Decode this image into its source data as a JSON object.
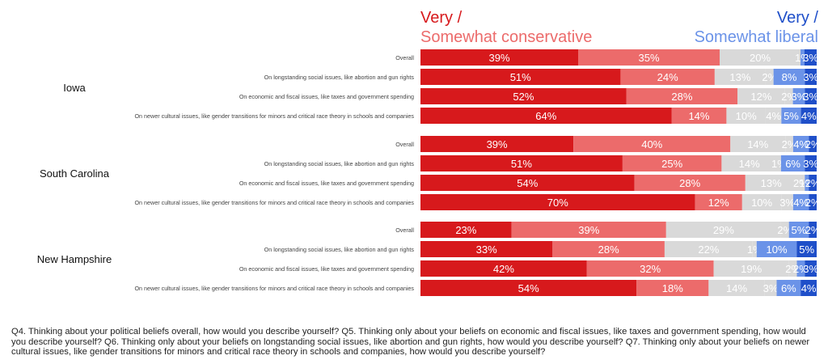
{
  "legend": {
    "left_line1": "Very /",
    "left_line2": "Somewhat conservative",
    "right_line1": "Very /",
    "right_line2": "Somewhat liberal"
  },
  "colors": {
    "very_conservative": "#d7191c",
    "somewhat_conservative": "#ec6b6b",
    "moderate": "#d9d9d9",
    "somewhat_liberal": "#6b93e8",
    "very_liberal": "#1f4fc9",
    "legend_conservative_strong": "#d7191c",
    "legend_conservative_soft": "#ec6b6b",
    "legend_liberal_strong": "#1f4fc9",
    "legend_liberal_soft": "#6b93e8"
  },
  "chart_data": {
    "type": "bar",
    "orientation": "horizontal",
    "stacked": true,
    "segment_order": [
      "Very conservative",
      "Somewhat conservative",
      "Moderate",
      "Somewhat liberal",
      "Very liberal"
    ],
    "xlim": [
      0,
      100
    ],
    "groups": [
      {
        "name": "Iowa",
        "rows": [
          {
            "label": "Overall",
            "values": [
              39,
              35,
              20,
              1,
              3
            ],
            "labels": [
              "39%",
              "35%",
              "20%",
              "1%",
              "3%"
            ]
          },
          {
            "label": "On longstanding social issues, like abortion and gun rights",
            "values": [
              51,
              24,
              13,
              2,
              8,
              3
            ],
            "labels": [
              "51%",
              "24%",
              "13%",
              "2%",
              "8%",
              "3%"
            ],
            "segments": [
              "Very conservative",
              "Somewhat conservative",
              "Moderate",
              "Moderate2",
              "Somewhat liberal",
              "Very liberal"
            ]
          },
          {
            "label": "On economic and fiscal issues, like taxes and government spending",
            "values": [
              52,
              28,
              12,
              2,
              3,
              3
            ],
            "labels": [
              "52%",
              "28%",
              "12%",
              "2%",
              "3%",
              "3%"
            ],
            "segments": [
              "Very conservative",
              "Somewhat conservative",
              "Moderate",
              "Moderate2",
              "Somewhat liberal",
              "Very liberal"
            ]
          },
          {
            "label": "On newer cultural issues, like gender transitions for minors and critical race theory in schools and companies",
            "values": [
              64,
              14,
              10,
              4,
              5,
              4
            ],
            "labels": [
              "64%",
              "14%",
              "10%",
              "4%",
              "5%",
              "4%"
            ],
            "segments": [
              "Very conservative",
              "Somewhat conservative",
              "Moderate",
              "Moderate2",
              "Somewhat liberal",
              "Very liberal"
            ]
          }
        ]
      },
      {
        "name": "South Carolina",
        "rows": [
          {
            "label": "Overall",
            "values": [
              39,
              40,
              14,
              2,
              4,
              2
            ],
            "labels": [
              "39%",
              "40%",
              "14%",
              "2%",
              "4%",
              "2%"
            ],
            "segments": [
              "Very conservative",
              "Somewhat conservative",
              "Moderate",
              "Moderate2",
              "Somewhat liberal",
              "Very liberal"
            ]
          },
          {
            "label": "On longstanding social issues, like abortion and gun rights",
            "values": [
              51,
              25,
              14,
              1,
              6,
              3
            ],
            "labels": [
              "51%",
              "25%",
              "14%",
              "1%",
              "6%",
              "3%"
            ],
            "segments": [
              "Very conservative",
              "Somewhat conservative",
              "Moderate",
              "Moderate2",
              "Somewhat liberal",
              "Very liberal"
            ]
          },
          {
            "label": "On economic and fiscal issues, like taxes and government spending",
            "values": [
              54,
              28,
              13,
              2,
              1,
              2
            ],
            "labels": [
              "54%",
              "28%",
              "13%",
              "2%",
              "1%",
              "2%"
            ],
            "segments": [
              "Very conservative",
              "Somewhat conservative",
              "Moderate",
              "Moderate2",
              "Somewhat liberal",
              "Very liberal"
            ]
          },
          {
            "label": "On newer cultural issues, like gender transitions for minors and critical race theory in schools and companies",
            "values": [
              70,
              12,
              10,
              3,
              4,
              2
            ],
            "labels": [
              "70%",
              "12%",
              "10%",
              "3%",
              "4%",
              "2%"
            ],
            "segments": [
              "Very conservative",
              "Somewhat conservative",
              "Moderate",
              "Moderate2",
              "Somewhat liberal",
              "Very liberal"
            ]
          }
        ]
      },
      {
        "name": "New Hampshire",
        "rows": [
          {
            "label": "Overall",
            "values": [
              23,
              39,
              29,
              2,
              5,
              2
            ],
            "labels": [
              "23%",
              "39%",
              "29%",
              "2%",
              "5%",
              "2%"
            ],
            "segments": [
              "Very conservative",
              "Somewhat conservative",
              "Moderate",
              "Moderate2",
              "Somewhat liberal",
              "Very liberal"
            ]
          },
          {
            "label": "On longstanding social issues, like abortion and gun rights",
            "values": [
              33,
              28,
              22,
              1,
              10,
              5
            ],
            "labels": [
              "33%",
              "28%",
              "22%",
              "1%",
              "10%",
              "5%"
            ],
            "segments": [
              "Very conservative",
              "Somewhat conservative",
              "Moderate",
              "Moderate2",
              "Somewhat liberal",
              "Very liberal"
            ]
          },
          {
            "label": "On economic and fiscal issues, like taxes and government spending",
            "values": [
              42,
              32,
              19,
              2,
              2,
              3
            ],
            "labels": [
              "42%",
              "32%",
              "19%",
              "2%",
              "2%",
              "3%"
            ],
            "segments": [
              "Very conservative",
              "Somewhat conservative",
              "Moderate",
              "Moderate2",
              "Somewhat liberal",
              "Very liberal"
            ]
          },
          {
            "label": "On newer cultural issues, like gender transitions for minors and critical race theory in schools and companies",
            "values": [
              54,
              18,
              14,
              3,
              6,
              4
            ],
            "labels": [
              "54%",
              "18%",
              "14%",
              "3%",
              "6%",
              "4%"
            ],
            "segments": [
              "Very conservative",
              "Somewhat conservative",
              "Moderate",
              "Moderate2",
              "Somewhat liberal",
              "Very liberal"
            ]
          }
        ]
      }
    ]
  },
  "footnote": "Q4. Thinking about your political beliefs overall, how would you describe yourself? Q5. Thinking only about your beliefs on economic and fiscal issues, like taxes and government spending, how would you describe yourself? Q6. Thinking only about your beliefs on longstanding social issues, like abortion and gun rights, how would you describe yourself? Q7. Thinking only about your beliefs on newer cultural issues, like gender transitions for minors and critical race theory in schools and companies, how would you describe yourself?"
}
